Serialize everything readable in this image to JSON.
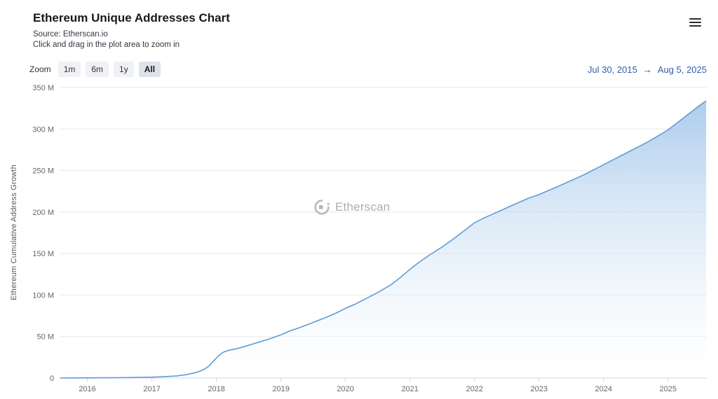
{
  "header": {
    "title": "Ethereum Unique Addresses Chart",
    "source": "Source: Etherscan.io",
    "hint": "Click and drag in the plot area to zoom in"
  },
  "toolbar": {
    "zoom_label": "Zoom",
    "buttons": [
      {
        "label": "1m",
        "selected": false
      },
      {
        "label": "6m",
        "selected": false
      },
      {
        "label": "1y",
        "selected": false
      },
      {
        "label": "All",
        "selected": true
      }
    ],
    "range_from": "Jul 30, 2015",
    "arrow": "→",
    "range_to": "Aug 5, 2025"
  },
  "watermark_text": "Etherscan",
  "colors": {
    "line": "#5e9cd6",
    "fill_top": "#9ec3e8",
    "fill_bottom": "#ffffff",
    "grid": "#e7e7e7",
    "axis_line": "#ccd6eb",
    "tick_text": "#666666",
    "link": "#335cad"
  },
  "chart_data": {
    "type": "area",
    "title": "Ethereum Unique Addresses Chart",
    "subtitle": "Source: Etherscan.io",
    "xlabel": "",
    "ylabel": "Ethereum Cumulative Address Growth",
    "y_unit": "millions of addresses",
    "xlim": [
      2015.57,
      2025.6
    ],
    "ylim": [
      0,
      350
    ],
    "grid": "horizontal",
    "legend": "off",
    "x_ticks": [
      2016,
      2017,
      2018,
      2019,
      2020,
      2021,
      2022,
      2023,
      2024,
      2025
    ],
    "y_ticks": [
      {
        "value": 0,
        "label": "0"
      },
      {
        "value": 50,
        "label": "50 M"
      },
      {
        "value": 100,
        "label": "100 M"
      },
      {
        "value": 150,
        "label": "150 M"
      },
      {
        "value": 200,
        "label": "200 M"
      },
      {
        "value": 250,
        "label": "250 M"
      },
      {
        "value": 300,
        "label": "300 M"
      },
      {
        "value": 350,
        "label": "350 M"
      }
    ],
    "range_start": "Jul 30, 2015",
    "range_end": "Aug 5, 2025",
    "series": [
      {
        "name": "Ethereum Cumulative Address Growth",
        "color": "#5e9cd6",
        "points": [
          [
            2015.58,
            0
          ],
          [
            2015.75,
            0.1
          ],
          [
            2016.0,
            0.2
          ],
          [
            2016.25,
            0.3
          ],
          [
            2016.5,
            0.45
          ],
          [
            2016.75,
            0.65
          ],
          [
            2017.0,
            1.0
          ],
          [
            2017.2,
            1.6
          ],
          [
            2017.4,
            2.6
          ],
          [
            2017.55,
            4.2
          ],
          [
            2017.7,
            7
          ],
          [
            2017.8,
            10
          ],
          [
            2017.88,
            14
          ],
          [
            2017.95,
            20
          ],
          [
            2018.0,
            24
          ],
          [
            2018.05,
            28
          ],
          [
            2018.12,
            31.5
          ],
          [
            2018.2,
            33.5
          ],
          [
            2018.35,
            36
          ],
          [
            2018.5,
            39.5
          ],
          [
            2018.65,
            43
          ],
          [
            2018.8,
            46.5
          ],
          [
            2019.0,
            52
          ],
          [
            2019.15,
            57
          ],
          [
            2019.3,
            61
          ],
          [
            2019.5,
            67
          ],
          [
            2019.7,
            73
          ],
          [
            2019.85,
            78
          ],
          [
            2020.0,
            84
          ],
          [
            2020.15,
            89
          ],
          [
            2020.3,
            95
          ],
          [
            2020.5,
            103
          ],
          [
            2020.7,
            112
          ],
          [
            2020.85,
            121
          ],
          [
            2021.0,
            131
          ],
          [
            2021.15,
            140
          ],
          [
            2021.3,
            148
          ],
          [
            2021.5,
            158
          ],
          [
            2021.7,
            169
          ],
          [
            2021.85,
            178
          ],
          [
            2022.0,
            187
          ],
          [
            2022.15,
            193
          ],
          [
            2022.3,
            198
          ],
          [
            2022.5,
            205
          ],
          [
            2022.7,
            212
          ],
          [
            2022.85,
            217
          ],
          [
            2023.0,
            221
          ],
          [
            2023.15,
            226
          ],
          [
            2023.3,
            231
          ],
          [
            2023.5,
            238
          ],
          [
            2023.7,
            245
          ],
          [
            2023.85,
            251
          ],
          [
            2024.0,
            257
          ],
          [
            2024.15,
            263
          ],
          [
            2024.3,
            269
          ],
          [
            2024.5,
            277
          ],
          [
            2024.7,
            285
          ],
          [
            2024.85,
            292
          ],
          [
            2025.0,
            299
          ],
          [
            2025.1,
            305
          ],
          [
            2025.2,
            311
          ],
          [
            2025.3,
            317
          ],
          [
            2025.4,
            323
          ],
          [
            2025.5,
            329
          ],
          [
            2025.59,
            334
          ]
        ]
      }
    ]
  }
}
